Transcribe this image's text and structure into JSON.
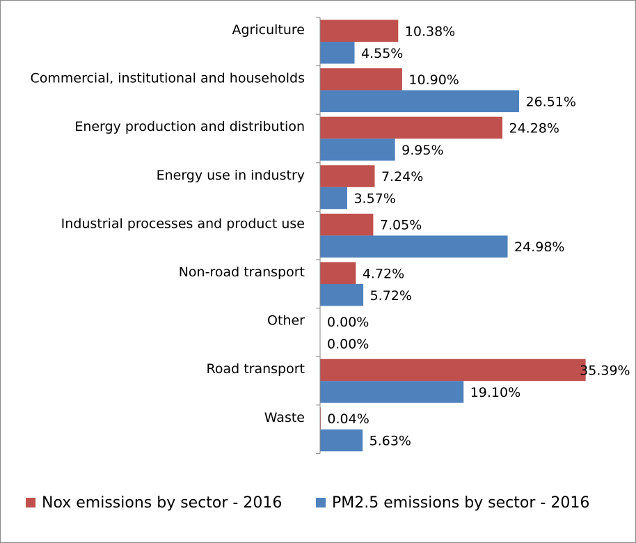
{
  "chart_data": {
    "type": "bar",
    "orientation": "horizontal",
    "categories": [
      "Agriculture",
      "Commercial, institutional and households",
      "Energy production and distribution",
      "Energy use in industry",
      "Industrial processes and product use",
      "Non-road transport",
      "Other",
      "Road transport",
      "Waste"
    ],
    "series": [
      {
        "name": "Nox emissions by sector - 2016",
        "color": "#C0504D",
        "values": [
          10.38,
          10.9,
          24.28,
          7.24,
          7.05,
          4.72,
          0.0,
          35.39,
          0.04
        ],
        "labels": [
          "10.38%",
          "10.90%",
          "24.28%",
          "7.24%",
          "7.05%",
          "4.72%",
          "0.00%",
          "35.39%",
          "0.04%"
        ]
      },
      {
        "name": "PM2.5 emissions by sector - 2016",
        "color": "#4F81BD",
        "values": [
          4.55,
          26.51,
          9.95,
          3.57,
          24.98,
          5.72,
          0.0,
          19.1,
          5.63
        ],
        "labels": [
          "4.55%",
          "26.51%",
          "9.95%",
          "3.57%",
          "24.98%",
          "5.72%",
          "0.00%",
          "19.10%",
          "5.63%"
        ]
      }
    ],
    "unit": "%",
    "value_axis_visible": false,
    "grid": false,
    "legend_position": "bottom"
  }
}
